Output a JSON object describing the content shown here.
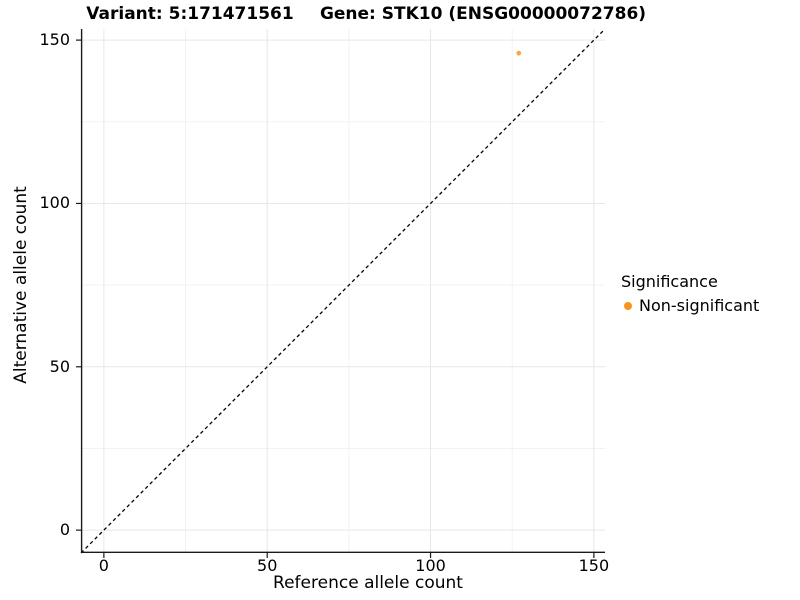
{
  "chart_data": {
    "type": "scatter",
    "titles": {
      "variant": "Variant: 5:171471561",
      "gene": "Gene: STK10 (ENSG00000072786)"
    },
    "xlabel": "Reference allele count",
    "ylabel": "Alternative allele count",
    "xlim": [
      -7,
      153.4
    ],
    "ylim": [
      -7,
      153.4
    ],
    "xticks": [
      0,
      50,
      100,
      150
    ],
    "yticks": [
      0,
      50,
      100,
      150
    ],
    "xminor": [
      25,
      75,
      125
    ],
    "yminor": [
      25,
      75,
      125
    ],
    "grid": "on",
    "identity_line": {
      "slope": 1,
      "intercept": 0,
      "style": "dashed",
      "color": "#000000"
    },
    "points": [
      {
        "x": 127,
        "y": 146,
        "significance": "Non-significant"
      }
    ],
    "point_color": "#F8A649",
    "point_radius": 2.4,
    "legend": {
      "title": "Significance",
      "position": "right",
      "items": [
        {
          "label": "Non-significant",
          "color": "#F7941E"
        }
      ]
    },
    "colors": {
      "grid_major": "#E7E7E7",
      "grid_minor": "#F2F2F2",
      "axis_line": "#1a1a1a",
      "tick_mark": "#1a1a1a",
      "background": "#FFFFFF"
    }
  }
}
